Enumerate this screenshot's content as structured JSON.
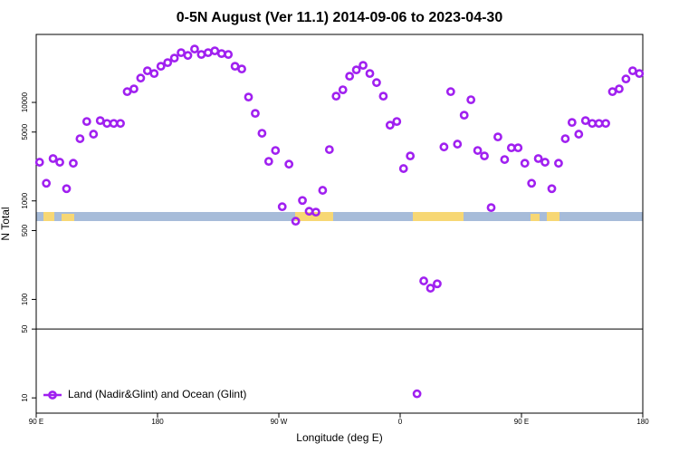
{
  "chart_data": {
    "type": "scatter",
    "log_y": true,
    "title": "0-5N August (Ver 11.1)   2014-09-06 to 2023-04-30",
    "xlabel": "Longitude (deg E)",
    "ylabel": "N Total",
    "xlim": [
      90,
      540
    ],
    "ylim": [
      7,
      49000
    ],
    "xticks": [
      {
        "value": 90,
        "label": "90 E"
      },
      180,
      {
        "value": 270,
        "label": "90 W"
      },
      {
        "value": 360,
        "label": "0"
      },
      {
        "value": 450,
        "label": "90 E"
      },
      {
        "value": 540,
        "label": "180"
      }
    ],
    "yticks": [
      10,
      50,
      100,
      500,
      1000,
      5000,
      10000
    ],
    "hline": 50,
    "legend": "bottom-left",
    "series": [
      {
        "name": "Land (Nadir&Glint) and Ocean (Glint)",
        "color": "#a020f0",
        "x": [
          92.5,
          97.5,
          102.5,
          107.5,
          112.5,
          117.5,
          122.5,
          127.5,
          132.5,
          137.5,
          142.5,
          147.5,
          152.5,
          157.5,
          162.5,
          167.5,
          172.5,
          177.5,
          182.5,
          187.5,
          192.5,
          197.5,
          202.5,
          207.5,
          212.5,
          217.5,
          222.5,
          227.5,
          232.5,
          237.5,
          242.5,
          247.5,
          252.5,
          257.5,
          262.5,
          267.5,
          272.5,
          277.5,
          282.5,
          287.5,
          292.5,
          297.5,
          302.5,
          307.5,
          312.5,
          317.5,
          322.5,
          327.5,
          332.5,
          337.5,
          342.5,
          347.5,
          352.5,
          357.5,
          362.5,
          367.5,
          372.5,
          377.5,
          382.5,
          387.5,
          392.5,
          397.5,
          402.5,
          407.5,
          412.5,
          417.5,
          422.5,
          427.5,
          432.5,
          437.5,
          442.5,
          447.5,
          452.5,
          457.5,
          462.5,
          467.5,
          472.5,
          477.5,
          482.5,
          487.5,
          492.5,
          497.5,
          502.5,
          507.5,
          512.5,
          517.5,
          522.5,
          527.5,
          532.5,
          537.5
        ],
        "values": [
          2470,
          1510,
          2690,
          2470,
          1330,
          2410,
          4280,
          6400,
          4760,
          6530,
          6120,
          6120,
          6120,
          12860,
          13710,
          17660,
          20940,
          19650,
          23290,
          25350,
          28180,
          31990,
          30000,
          34830,
          30680,
          31990,
          33360,
          31330,
          30680,
          23290,
          21840,
          11330,
          7740,
          4860,
          2520,
          3250,
          873,
          2360,
          622,
          1010,
          785,
          769,
          1280,
          3320,
          11570,
          13430,
          18450,
          21390,
          23790,
          19650,
          15890,
          11570,
          5870,
          6400,
          2130,
          2860,
          11,
          154,
          130,
          144,
          3530,
          12860,
          3770,
          7420,
          10640,
          3250,
          2860,
          855,
          4460,
          2630,
          3460,
          3460,
          2410,
          1510,
          2690,
          2470,
          1330,
          2410,
          4280,
          6260,
          4760,
          6530,
          6120,
          6120,
          6120,
          12860,
          13710,
          17300,
          20940,
          19650
        ]
      }
    ]
  }
}
